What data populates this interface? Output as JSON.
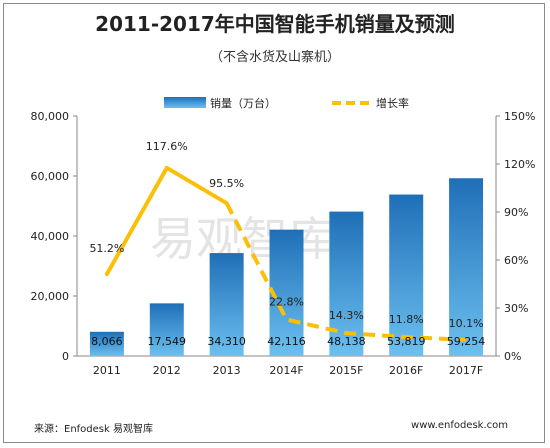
{
  "chart_data": {
    "type": "bar",
    "title": "2011-2017年中国智能手机销量及预测",
    "subtitle": "（不含水货及山寨机）",
    "categories": [
      "2011",
      "2012",
      "2013",
      "2014F",
      "2015F",
      "2016F",
      "2017F"
    ],
    "series": [
      {
        "name": "销量（万台）",
        "type": "bar",
        "axis": "left",
        "values": [
          8066,
          17549,
          34310,
          42116,
          48138,
          53819,
          59254
        ],
        "labels": [
          "8,066",
          "17,549",
          "34,310",
          "42,116",
          "48,138",
          "53,819",
          "59,254"
        ],
        "color": "#2f86cc"
      },
      {
        "name": "增长率",
        "type": "line",
        "axis": "right",
        "values": [
          51.2,
          117.6,
          95.5,
          22.8,
          14.3,
          11.8,
          10.1
        ],
        "labels": [
          "51.2%",
          "117.6%",
          "95.5%",
          "22.8%",
          "14.3%",
          "11.8%",
          "10.1%"
        ],
        "color": "#fbbf06",
        "dashed_from_index": 2
      }
    ],
    "y_left": {
      "min": 0,
      "max": 80000,
      "ticks": [
        0,
        20000,
        40000,
        60000,
        80000
      ],
      "tick_labels": [
        "0",
        "20,000",
        "40,000",
        "60,000",
        "80,000"
      ]
    },
    "y_right": {
      "min": 0,
      "max": 150,
      "ticks": [
        0,
        30,
        60,
        90,
        120,
        150
      ],
      "tick_labels": [
        "0%",
        "30%",
        "60%",
        "90%",
        "120%",
        "150%"
      ]
    },
    "legend_position": "top",
    "grid": false
  },
  "watermark": "易观智库",
  "footer": {
    "source": "来源：Enfodesk 易观智库",
    "site": "www.enfodesk.com"
  }
}
